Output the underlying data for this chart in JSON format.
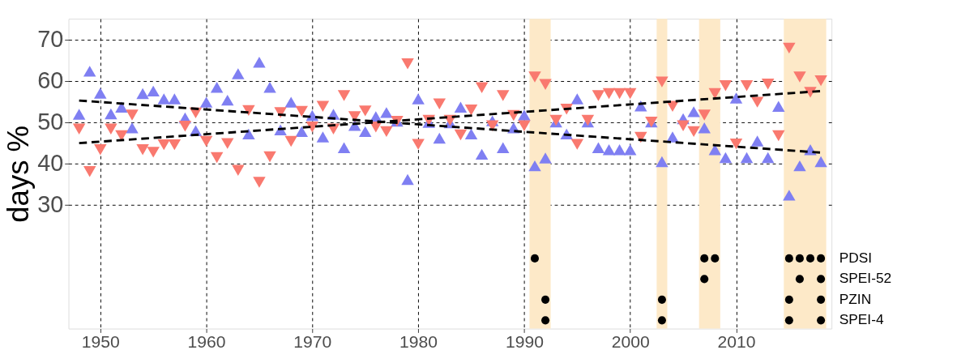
{
  "chart_data": {
    "type": "scatter",
    "ylabel": "days %",
    "x": [
      1948,
      1949,
      1950,
      1951,
      1952,
      1953,
      1954,
      1955,
      1956,
      1957,
      1958,
      1959,
      1960,
      1961,
      1962,
      1963,
      1964,
      1965,
      1966,
      1967,
      1968,
      1969,
      1970,
      1971,
      1972,
      1973,
      1974,
      1975,
      1976,
      1977,
      1978,
      1979,
      1980,
      1981,
      1982,
      1983,
      1984,
      1985,
      1986,
      1987,
      1988,
      1989,
      1990,
      1991,
      1992,
      1993,
      1994,
      1995,
      1996,
      1997,
      1998,
      1999,
      2000,
      2001,
      2002,
      2003,
      2004,
      2005,
      2006,
      2007,
      2008,
      2009,
      2010,
      2011,
      2012,
      2013,
      2014,
      2015,
      2016,
      2017,
      2018
    ],
    "xlim": [
      1947,
      2019
    ],
    "xticks": [
      1950,
      1960,
      1970,
      1980,
      1990,
      2000,
      2010
    ],
    "ylim": [
      0,
      75
    ],
    "yticks": [
      30,
      40,
      50,
      60,
      70
    ],
    "grid": true,
    "bands": [
      {
        "axis": "x",
        "from": 1990.5,
        "to": 1992.5,
        "color": "#fde9c8"
      },
      {
        "axis": "x",
        "from": 2002.5,
        "to": 2003.5,
        "color": "#fde9c8"
      },
      {
        "axis": "x",
        "from": 2006.5,
        "to": 2008.5,
        "color": "#fde9c8"
      },
      {
        "axis": "x",
        "from": 2014.5,
        "to": 2018.5,
        "color": "#fde9c8"
      }
    ],
    "series": [
      {
        "marker": "triangle",
        "color": "#7f7ff2",
        "values": [
          51.9,
          62.3,
          57,
          52,
          53.6,
          48.6,
          56.9,
          57.5,
          55.6,
          55.6,
          51,
          47.9,
          54.8,
          58.4,
          55.3,
          61.7,
          47.1,
          64.5,
          58.4,
          48.1,
          54.8,
          47.7,
          51.6,
          46.4,
          51.9,
          43.8,
          49.2,
          47.7,
          51.3,
          52.3,
          50.2,
          36.1,
          55.6,
          49.9,
          46.1,
          49.8,
          53.6,
          47.1,
          42.2,
          50.3,
          43.8,
          48.6,
          51.7,
          39.4,
          41.3,
          50,
          47.1,
          55.6,
          50,
          43.8,
          43.3,
          43.3,
          43.3,
          53.9,
          50,
          40.4,
          46.4,
          50.8,
          52.5,
          48.6,
          43.3,
          41.4,
          55.8,
          41.4,
          45.4,
          41.4,
          53.8,
          32.3,
          39.4,
          43.3,
          40.4
        ]
      },
      {
        "marker": "triangle-down",
        "color": "#f9796f",
        "values": [
          48.3,
          38,
          43.3,
          48.3,
          46.7,
          51.7,
          43.3,
          42.7,
          44.5,
          44.5,
          49,
          52.2,
          45.3,
          41.4,
          44.8,
          38.3,
          52.8,
          35.4,
          41.6,
          52.3,
          45.3,
          52.6,
          48.8,
          53.8,
          48.3,
          56.4,
          51.3,
          52.7,
          48.8,
          47.7,
          50.2,
          64.1,
          44.6,
          50.4,
          54.4,
          50.4,
          46.9,
          52.9,
          58.3,
          49.1,
          56.4,
          51.6,
          49.1,
          60.9,
          59.1,
          50.4,
          53.1,
          44.6,
          50.4,
          56.4,
          56.9,
          56.9,
          56.9,
          46.3,
          50,
          59.7,
          53.8,
          49.1,
          47.7,
          51.7,
          56.9,
          58.8,
          44.7,
          58.8,
          54.8,
          59.2,
          46.7,
          67.9,
          60.9,
          57.2,
          60
        ]
      },
      {
        "type": "line",
        "line_style": "dashed",
        "color": "#000000",
        "x": [
          1948,
          2018
        ],
        "values": [
          55.2,
          42.6
        ]
      },
      {
        "type": "line",
        "line_style": "dashed",
        "color": "#000000",
        "x": [
          1948,
          2018
        ],
        "values": [
          44.9,
          57.5
        ]
      },
      {
        "marker": "circle",
        "name": "PDSI",
        "color": "#000000",
        "x": [
          1991,
          2007,
          2008,
          2015,
          2016,
          2017,
          2018
        ],
        "values": [
          17,
          17,
          17,
          17,
          17,
          17,
          17
        ]
      },
      {
        "marker": "circle",
        "name": "SPEI-52",
        "color": "#000000",
        "x": [
          2007,
          2016,
          2018
        ],
        "values": [
          12,
          12,
          12
        ]
      },
      {
        "marker": "circle",
        "name": "PZIN",
        "color": "#000000",
        "x": [
          1992,
          2003,
          2015,
          2018
        ],
        "values": [
          7,
          7,
          7,
          7
        ]
      },
      {
        "marker": "circle",
        "name": "SPEI-4",
        "color": "#000000",
        "x": [
          1992,
          2003,
          2015,
          2018
        ],
        "values": [
          2,
          2,
          2,
          2
        ]
      }
    ]
  }
}
